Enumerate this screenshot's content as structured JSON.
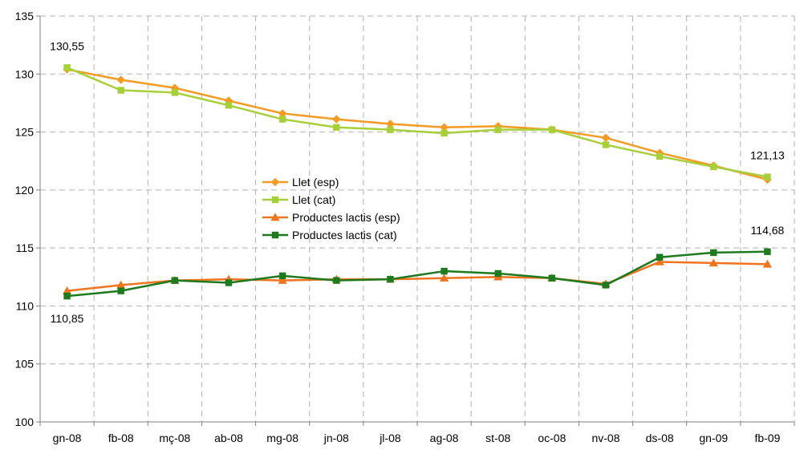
{
  "chart_data": {
    "type": "line",
    "title": "",
    "xlabel": "",
    "ylabel": "",
    "categories": [
      "gn-08",
      "fb-08",
      "mç-08",
      "ab-08",
      "mg-08",
      "jn-08",
      "jl-08",
      "ag-08",
      "st-08",
      "oc-08",
      "nv-08",
      "ds-08",
      "gn-09",
      "fb-09"
    ],
    "ylim": [
      100,
      135
    ],
    "yticks": [
      100,
      105,
      110,
      115,
      120,
      125,
      130,
      135
    ],
    "grid": true,
    "legend_position": "center",
    "series": [
      {
        "name": "Llet (esp)",
        "color": "#f59a23",
        "marker": "diamond",
        "values": [
          130.4,
          129.5,
          128.8,
          127.7,
          126.6,
          126.1,
          125.7,
          125.4,
          125.5,
          125.2,
          124.5,
          123.2,
          122.1,
          120.9
        ]
      },
      {
        "name": "Llet (cat)",
        "color": "#a6cf3a",
        "marker": "square",
        "values": [
          130.55,
          128.6,
          128.4,
          127.3,
          126.1,
          125.4,
          125.2,
          124.9,
          125.2,
          125.2,
          123.9,
          122.9,
          122.0,
          121.13
        ]
      },
      {
        "name": "Productes lactis (esp)",
        "color": "#f0731e",
        "marker": "triangle",
        "values": [
          111.3,
          111.8,
          112.2,
          112.3,
          112.2,
          112.3,
          112.3,
          112.4,
          112.5,
          112.4,
          111.9,
          113.8,
          113.7,
          113.6
        ]
      },
      {
        "name": "Productes lactis (cat)",
        "color": "#1e7a1e",
        "marker": "square",
        "values": [
          110.85,
          111.3,
          112.2,
          112.0,
          112.6,
          112.2,
          112.3,
          113.0,
          112.8,
          112.4,
          111.8,
          114.2,
          114.6,
          114.68
        ]
      }
    ],
    "annotations": [
      {
        "text": "130,55",
        "series": 1,
        "index": 0,
        "position": "above"
      },
      {
        "text": "121,13",
        "series": 1,
        "index": 13,
        "position": "above"
      },
      {
        "text": "110,85",
        "series": 3,
        "index": 0,
        "position": "below"
      },
      {
        "text": "114,68",
        "series": 3,
        "index": 13,
        "position": "above"
      }
    ]
  }
}
